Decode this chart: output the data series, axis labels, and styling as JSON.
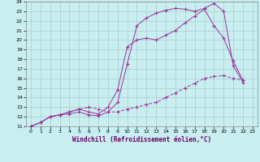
{
  "xlabel": "Windchill (Refroidissement éolien,°C)",
  "background_color": "#c8eef0",
  "grid_color": "#aacccc",
  "line_color": "#993399",
  "xlim": [
    -0.5,
    23.5
  ],
  "ylim": [
    11,
    24
  ],
  "x_ticks": [
    0,
    1,
    2,
    3,
    4,
    5,
    6,
    7,
    8,
    9,
    10,
    11,
    12,
    13,
    14,
    15,
    16,
    17,
    18,
    19,
    20,
    21,
    22,
    23
  ],
  "y_ticks": [
    11,
    12,
    13,
    14,
    15,
    16,
    17,
    18,
    19,
    20,
    21,
    22,
    23,
    24
  ],
  "line1_x": [
    0,
    1,
    2,
    3,
    4,
    5,
    6,
    7,
    8,
    9,
    10,
    11,
    12,
    13,
    14,
    15,
    16,
    17,
    18,
    19,
    20,
    21,
    22
  ],
  "line1_y": [
    11,
    11.4,
    12.0,
    12.2,
    12.3,
    12.5,
    12.2,
    12.1,
    12.5,
    13.5,
    17.5,
    21.5,
    22.3,
    22.8,
    23.1,
    23.3,
    23.2,
    23.0,
    23.3,
    23.8,
    23.0,
    17.3,
    15.6
  ],
  "line2_x": [
    0,
    1,
    2,
    3,
    4,
    5,
    6,
    7,
    8,
    9,
    10,
    11,
    12,
    13,
    14,
    15,
    16,
    17,
    18,
    19,
    20,
    21,
    22
  ],
  "line2_y": [
    11,
    11.4,
    12.0,
    12.2,
    12.5,
    12.8,
    13.0,
    12.8,
    12.5,
    12.5,
    12.8,
    13.0,
    13.3,
    13.5,
    14.0,
    14.5,
    15.0,
    15.5,
    16.0,
    16.2,
    16.3,
    16.0,
    15.8
  ],
  "line3_x": [
    0,
    1,
    2,
    3,
    4,
    5,
    6,
    7,
    8,
    9,
    10,
    11,
    12,
    13,
    14,
    15,
    16,
    17,
    18,
    19,
    20,
    21,
    22
  ],
  "line3_y": [
    11,
    11.4,
    12.0,
    12.2,
    12.5,
    12.8,
    12.5,
    12.3,
    13.0,
    14.8,
    19.3,
    20.0,
    20.2,
    20.0,
    20.5,
    21.0,
    21.8,
    22.5,
    23.2,
    21.5,
    20.2,
    17.8,
    15.8
  ]
}
